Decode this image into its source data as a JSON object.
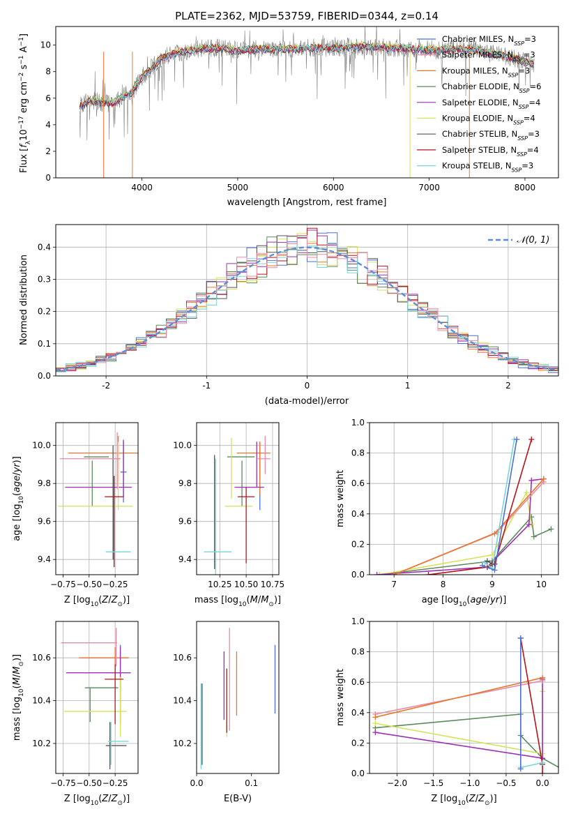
{
  "figure": {
    "title": "PLATE=2362, MJD=53759, FIBERID=0344, z=0.14"
  },
  "colors": {
    "model_palette": [
      "#4c6fd6",
      "#e8762d",
      "#5a8a5a",
      "#9c2fb3",
      "#d6e25a",
      "#555555",
      "#b5121b",
      "#78d6da",
      "#e88aa6",
      "#808080"
    ]
  },
  "chart_data": [
    {
      "type": "line",
      "id": "spectrum",
      "title": "PLATE=2362, MJD=53759, FIBERID=0344, z=0.14",
      "xlabel": "wavelength [Angstrom, rest frame]",
      "ylabel": "Flux [f_λ 10^-17 erg cm^-2 s^-1 A^-1]",
      "xlim": [
        3100,
        8350
      ],
      "ylim": [
        0,
        11.4
      ],
      "xticks": [
        4000,
        5000,
        6000,
        7000,
        8000
      ],
      "yticks": [
        0,
        2,
        4,
        6,
        8,
        10
      ],
      "grid": false,
      "legend_position": "top-right",
      "data_continuum": {
        "x": [
          3350,
          3450,
          3600,
          3700,
          3800,
          3900,
          4000,
          4100,
          4200,
          4300,
          4400,
          4600,
          4800,
          5000,
          5200,
          5500,
          5800,
          6000,
          6300,
          6600,
          6900,
          7100,
          7300,
          7500,
          7700,
          7900,
          8100
        ],
        "y": [
          5.4,
          5.8,
          5.7,
          5.6,
          6.1,
          6.5,
          7.6,
          8.3,
          9.0,
          9.3,
          9.5,
          9.7,
          9.8,
          9.6,
          9.7,
          9.7,
          9.8,
          9.8,
          9.9,
          9.8,
          9.7,
          9.6,
          9.7,
          9.6,
          9.3,
          9.0,
          8.5
        ]
      },
      "series": [
        {
          "name": "Chabrier MILES, N_SSP=3",
          "label_main": "Chabrier MILES, N",
          "label_sub": "SSP",
          "label_tail": "=3",
          "color": "#4c6fd6",
          "offset": 0.0
        },
        {
          "name": "Salpeter MILES, N_SSP=3",
          "label_main": "Salpeter MILES, N",
          "label_sub": "SSP",
          "label_tail": "=3",
          "color": "#e88aa6",
          "offset": 0.05
        },
        {
          "name": "Kroupa MILES, N_SSP=3",
          "label_main": "Kroupa MILES, N",
          "label_sub": "SSP",
          "label_tail": "=3",
          "color": "#e8762d",
          "offset": -0.05
        },
        {
          "name": "Chabrier ELODIE, N_SSP=6",
          "label_main": "Chabrier ELODIE, N",
          "label_sub": "SSP",
          "label_tail": "=6",
          "color": "#5a8a5a",
          "offset": 0.08
        },
        {
          "name": "Salpeter ELODIE, N_SSP=4",
          "label_main": "Salpeter ELODIE, N",
          "label_sub": "SSP",
          "label_tail": "=4",
          "color": "#9c2fb3",
          "offset": -0.08
        },
        {
          "name": "Kroupa ELODIE, N_SSP=4",
          "label_main": "Kroupa ELODIE, N",
          "label_sub": "SSP",
          "label_tail": "=4",
          "color": "#d6e25a",
          "offset": 0.12
        },
        {
          "name": "Chabrier STELIB, N_SSP=3",
          "label_main": "Chabrier STELIB, N",
          "label_sub": "SSP",
          "label_tail": "=3",
          "color": "#555555",
          "offset": -0.12
        },
        {
          "name": "Salpeter STELIB, N_SSP=4",
          "label_main": "Salpeter STELIB, N",
          "label_sub": "SSP",
          "label_tail": "=4",
          "color": "#b5121b",
          "offset": 0.03
        },
        {
          "name": "Kroupa STELIB, N_SSP=3",
          "label_main": "Kroupa STELIB, N",
          "label_sub": "SSP",
          "label_tail": "=3",
          "color": "#78d6da",
          "offset": 0.0
        }
      ]
    },
    {
      "type": "histogram",
      "id": "residuals",
      "xlabel": "(data-model)/error",
      "ylabel": "Normed distribution",
      "xlim": [
        -2.5,
        2.5
      ],
      "ylim": [
        0,
        0.47
      ],
      "xticks": [
        -2,
        -1,
        0,
        1,
        2
      ],
      "yticks": [
        0.0,
        0.1,
        0.2,
        0.3,
        0.4
      ],
      "grid": true,
      "legend_position": "top-right",
      "legend": "𝒩(0, 1)",
      "reference_curve": {
        "name": "N(0,1)",
        "mean": 0,
        "sigma": 1,
        "color": "#5b8ed6"
      },
      "bin_width": 0.1
    },
    {
      "type": "scatter",
      "id": "age-vs-z",
      "xlabel": "Z [log10(Z/Z_sun)]",
      "ylabel": "age [log10(age/yr)]",
      "xlim": [
        -0.82,
        -0.03
      ],
      "ylim": [
        9.32,
        10.12
      ],
      "xticks": [
        -0.75,
        -0.5,
        -0.25
      ],
      "xtick_labels": [
        "−0.75",
        "−0.50",
        "−0.25"
      ],
      "yticks": [
        9.4,
        9.6,
        9.8,
        10.0
      ],
      "grid": true,
      "errorbars": [
        {
          "x": -0.17,
          "xerr": 0.03,
          "y": 9.86,
          "yerr": 0.16,
          "color": "#4c6fd6"
        },
        {
          "x": -0.36,
          "xerr": 0.34,
          "y": 9.96,
          "yerr": 0.0,
          "color": "#e8762d"
        },
        {
          "x": -0.22,
          "xerr": 0.02,
          "y": 9.93,
          "yerr": 0.12,
          "color": "#e8762d"
        },
        {
          "x": -0.43,
          "xerr": 0.12,
          "y": 9.94,
          "yerr": 0.0,
          "color": "#5a8a5a"
        },
        {
          "x": -0.47,
          "xerr": 0.0,
          "y": 9.8,
          "yerr": 0.12,
          "color": "#5a8a5a"
        },
        {
          "x": -0.41,
          "xerr": 0.32,
          "y": 9.78,
          "yerr": 0.0,
          "color": "#9c2fb3"
        },
        {
          "x": -0.17,
          "xerr": 0.0,
          "y": 9.88,
          "yerr": 0.15,
          "color": "#9c2fb3"
        },
        {
          "x": -0.44,
          "xerr": 0.36,
          "y": 9.68,
          "yerr": 0.0,
          "color": "#d6e25a"
        },
        {
          "x": -0.22,
          "xerr": 0.0,
          "y": 9.84,
          "yerr": 0.18,
          "color": "#d6e25a"
        },
        {
          "x": -0.27,
          "xerr": 0.0,
          "y": 9.7,
          "yerr": 0.3,
          "color": "#555555"
        },
        {
          "x": -0.26,
          "xerr": 0.09,
          "y": 9.73,
          "yerr": 0.0,
          "color": "#b5121b"
        },
        {
          "x": -0.26,
          "xerr": 0.0,
          "y": 9.6,
          "yerr": 0.24,
          "color": "#b5121b"
        },
        {
          "x": -0.22,
          "xerr": 0.12,
          "y": 9.44,
          "yerr": 0.0,
          "color": "#78d6da"
        },
        {
          "x": -0.49,
          "xerr": 0.29,
          "y": 9.93,
          "yerr": 0.0,
          "color": "#e88aa6"
        },
        {
          "x": -0.23,
          "xerr": 0.0,
          "y": 9.92,
          "yerr": 0.15,
          "color": "#e88aa6"
        }
      ]
    },
    {
      "type": "scatter",
      "id": "age-vs-mass",
      "xlabel": "mass [log10(M/M_sun)]",
      "ylabel": "",
      "xlim": [
        10.03,
        10.81
      ],
      "ylim": [
        9.32,
        10.12
      ],
      "xticks": [
        10.25,
        10.5,
        10.75
      ],
      "xtick_labels": [
        "10.25",
        "10.50",
        "10.75"
      ],
      "yticks": [
        9.4,
        9.6,
        9.8,
        10.0
      ],
      "grid": true,
      "errorbars": [
        {
          "x": 10.63,
          "xerr": 0.0,
          "y": 9.84,
          "yerr": 0.18,
          "color": "#4c6fd6"
        },
        {
          "x": 10.57,
          "xerr": 0.16,
          "y": 9.96,
          "yerr": 0.0,
          "color": "#e8762d"
        },
        {
          "x": 10.63,
          "xerr": 0.0,
          "y": 9.88,
          "yerr": 0.14,
          "color": "#e8762d"
        },
        {
          "x": 10.45,
          "xerr": 0.13,
          "y": 9.94,
          "yerr": 0.0,
          "color": "#5a8a5a"
        },
        {
          "x": 10.46,
          "xerr": 0.0,
          "y": 9.8,
          "yerr": 0.12,
          "color": "#5a8a5a"
        },
        {
          "x": 10.53,
          "xerr": 0.14,
          "y": 9.78,
          "yerr": 0.0,
          "color": "#9c2fb3"
        },
        {
          "x": 10.6,
          "xerr": 0.0,
          "y": 9.9,
          "yerr": 0.12,
          "color": "#9c2fb3"
        },
        {
          "x": 10.43,
          "xerr": 0.13,
          "y": 9.68,
          "yerr": 0.0,
          "color": "#d6e25a"
        },
        {
          "x": 10.36,
          "xerr": 0.0,
          "y": 9.88,
          "yerr": 0.16,
          "color": "#d6e25a"
        },
        {
          "x": 10.2,
          "xerr": 0.0,
          "y": 9.65,
          "yerr": 0.3,
          "color": "#555555"
        },
        {
          "x": 10.5,
          "xerr": 0.08,
          "y": 9.73,
          "yerr": 0.0,
          "color": "#b5121b"
        },
        {
          "x": 10.5,
          "xerr": 0.0,
          "y": 9.58,
          "yerr": 0.2,
          "color": "#b5121b"
        },
        {
          "x": 10.23,
          "xerr": 0.13,
          "y": 9.44,
          "yerr": 0.0,
          "color": "#78d6da"
        },
        {
          "x": 10.21,
          "xerr": 0.0,
          "y": 9.6,
          "yerr": 0.33,
          "color": "#78d6da"
        },
        {
          "x": 10.67,
          "xerr": 0.06,
          "y": 9.93,
          "yerr": 0.0,
          "color": "#e88aa6"
        },
        {
          "x": 10.68,
          "xerr": 0.0,
          "y": 9.95,
          "yerr": 0.1,
          "color": "#e88aa6"
        }
      ]
    },
    {
      "type": "line",
      "id": "massweight-vs-age",
      "xlabel": "age [log10(age/yr)]",
      "ylabel": "mass weight",
      "xlim": [
        6.5,
        10.35
      ],
      "ylim": [
        0,
        1.0
      ],
      "xticks": [
        7,
        8,
        9,
        10
      ],
      "yticks": [
        0.0,
        0.2,
        0.4,
        0.6,
        0.8,
        1.0
      ],
      "grid": true,
      "series": [
        {
          "color": "#5a8a5a",
          "x": [
            6.7,
            9.0,
            9.8,
            9.85,
            10.2
          ],
          "y": [
            0.0,
            0.09,
            0.38,
            0.25,
            0.3
          ]
        },
        {
          "color": "#d6e25a",
          "x": [
            6.7,
            9.0,
            9.7,
            9.8
          ],
          "y": [
            0.0,
            0.13,
            0.54,
            0.33
          ]
        },
        {
          "color": "#9c2fb3",
          "x": [
            6.65,
            8.9,
            9.75,
            9.8,
            10.05
          ],
          "y": [
            0.0,
            0.05,
            0.33,
            0.62,
            0.63
          ]
        },
        {
          "color": "#e88aa6",
          "x": [
            7.0,
            9.1,
            10.05
          ],
          "y": [
            0.0,
            0.28,
            0.61
          ]
        },
        {
          "color": "#e8762d",
          "x": [
            7.0,
            9.05,
            10.05
          ],
          "y": [
            0.0,
            0.27,
            0.63
          ]
        },
        {
          "color": "#b5121b",
          "x": [
            7.7,
            8.9,
            9.05,
            9.8
          ],
          "y": [
            0.0,
            0.05,
            0.07,
            0.89
          ]
        },
        {
          "color": "#78d6da",
          "x": [
            8.85,
            9.0,
            9.45
          ],
          "y": [
            0.08,
            0.04,
            0.89
          ]
        },
        {
          "color": "#4c6fd6",
          "x": [
            8.8,
            9.05,
            9.5
          ],
          "y": [
            0.06,
            0.03,
            0.89
          ]
        },
        {
          "color": "#555555",
          "x": [
            8.9,
            9.0
          ],
          "y": [
            0.09,
            0.07
          ]
        }
      ]
    },
    {
      "type": "scatter",
      "id": "mass-vs-z",
      "xlabel": "Z [log10(Z/Z_sun)]",
      "ylabel": "mass [log10(M/M_sun)]",
      "xlim": [
        -0.82,
        -0.03
      ],
      "ylim": [
        10.06,
        10.77
      ],
      "xticks": [
        -0.75,
        -0.5,
        -0.25
      ],
      "xtick_labels": [
        "−0.75",
        "−0.50",
        "−0.25"
      ],
      "yticks": [
        10.2,
        10.4,
        10.6
      ],
      "grid": true,
      "errorbars": [
        {
          "x": -0.35,
          "xerr": 0.23,
          "y": 10.6,
          "yerr": 0.0,
          "color": "#4c6fd6"
        },
        {
          "x": -0.2,
          "xerr": 0.0,
          "y": 10.55,
          "yerr": 0.11,
          "color": "#4c6fd6"
        },
        {
          "x": -0.36,
          "xerr": 0.24,
          "y": 10.6,
          "yerr": 0.0,
          "color": "#e8762d"
        },
        {
          "x": -0.25,
          "xerr": 0.0,
          "y": 10.58,
          "yerr": 0.07,
          "color": "#e8762d"
        },
        {
          "x": -0.38,
          "xerr": 0.16,
          "y": 10.46,
          "yerr": 0.0,
          "color": "#5a8a5a"
        },
        {
          "x": -0.49,
          "xerr": 0.0,
          "y": 10.38,
          "yerr": 0.08,
          "color": "#5a8a5a"
        },
        {
          "x": -0.41,
          "xerr": 0.31,
          "y": 10.53,
          "yerr": 0.0,
          "color": "#9c2fb3"
        },
        {
          "x": -0.2,
          "xerr": 0.0,
          "y": 10.47,
          "yerr": 0.18,
          "color": "#9c2fb3"
        },
        {
          "x": -0.44,
          "xerr": 0.3,
          "y": 10.35,
          "yerr": 0.0,
          "color": "#d6e25a"
        },
        {
          "x": -0.2,
          "xerr": 0.0,
          "y": 10.37,
          "yerr": 0.14,
          "color": "#d6e25a"
        },
        {
          "x": -0.24,
          "xerr": 0.1,
          "y": 10.19,
          "yerr": 0.0,
          "color": "#555555"
        },
        {
          "x": -0.3,
          "xerr": 0.0,
          "y": 10.19,
          "yerr": 0.11,
          "color": "#555555"
        },
        {
          "x": -0.26,
          "xerr": 0.09,
          "y": 10.5,
          "yerr": 0.0,
          "color": "#b5121b"
        },
        {
          "x": -0.25,
          "xerr": 0.0,
          "y": 10.43,
          "yerr": 0.14,
          "color": "#b5121b"
        },
        {
          "x": -0.22,
          "xerr": 0.1,
          "y": 10.21,
          "yerr": 0.0,
          "color": "#78d6da"
        },
        {
          "x": -0.29,
          "xerr": 0.0,
          "y": 10.2,
          "yerr": 0.1,
          "color": "#78d6da"
        },
        {
          "x": -0.5,
          "xerr": 0.27,
          "y": 10.67,
          "yerr": 0.0,
          "color": "#e88aa6"
        },
        {
          "x": -0.24,
          "xerr": 0.0,
          "y": 10.65,
          "yerr": 0.09,
          "color": "#e88aa6"
        }
      ]
    },
    {
      "type": "scatter",
      "id": "mass-vs-ebv",
      "xlabel": "E(B-V)",
      "ylabel": "",
      "xlim": [
        0.0,
        0.15
      ],
      "ylim": [
        10.06,
        10.77
      ],
      "xticks": [
        0.0,
        0.1
      ],
      "xtick_labels": [
        "0.0",
        "0.1"
      ],
      "yticks": [
        10.2,
        10.4,
        10.6
      ],
      "grid": false,
      "errorbars": [
        {
          "x": 0.143,
          "xerr": 0.0,
          "y": 10.5,
          "yerr": 0.16,
          "color": "#4c6fd6"
        },
        {
          "x": 0.073,
          "xerr": 0.0,
          "y": 10.48,
          "yerr": 0.15,
          "color": "#e8762d"
        },
        {
          "x": 0.06,
          "xerr": 0.0,
          "y": 10.5,
          "yerr": 0.24,
          "color": "#e88aa6"
        },
        {
          "x": 0.05,
          "xerr": 0.0,
          "y": 10.47,
          "yerr": 0.16,
          "color": "#9c2fb3"
        },
        {
          "x": 0.055,
          "xerr": 0.0,
          "y": 10.39,
          "yerr": 0.16,
          "color": "#d6e25a"
        },
        {
          "x": 0.055,
          "xerr": 0.0,
          "y": 10.4,
          "yerr": 0.15,
          "color": "#b5121b"
        },
        {
          "x": 0.01,
          "xerr": 0.0,
          "y": 10.29,
          "yerr": 0.19,
          "color": "#555555"
        },
        {
          "x": 0.008,
          "xerr": 0.0,
          "y": 10.28,
          "yerr": 0.2,
          "color": "#78d6da"
        }
      ]
    },
    {
      "type": "line",
      "id": "massweight-vs-z",
      "xlabel": "Z [log10(Z/Z_sun)]",
      "ylabel": "mass weight",
      "xlim": [
        -2.38,
        0.22
      ],
      "ylim": [
        0,
        1.0
      ],
      "xticks": [
        -2.0,
        -1.5,
        -1.0,
        -0.5,
        0.0
      ],
      "xtick_labels": [
        "−2.0",
        "−1.5",
        "−1.0",
        "−0.5",
        "0.0"
      ],
      "yticks": [
        0.0,
        0.2,
        0.4,
        0.6,
        0.8,
        1.0
      ],
      "grid": true,
      "series": [
        {
          "color": "#5a8a5a",
          "x": [
            -2.3,
            -0.3,
            -0.3,
            0.0,
            0.3
          ],
          "y": [
            0.3,
            0.39,
            0.25,
            0.1,
            0.02
          ]
        },
        {
          "color": "#d6e25a",
          "x": [
            -2.3,
            0.0,
            0.0
          ],
          "y": [
            0.33,
            0.13,
            0.54
          ]
        },
        {
          "color": "#9c2fb3",
          "x": [
            -2.3,
            0.0,
            0.0
          ],
          "y": [
            0.27,
            0.1,
            0.62
          ]
        },
        {
          "color": "#e88aa6",
          "x": [
            -2.3,
            0.0
          ],
          "y": [
            0.39,
            0.61
          ]
        },
        {
          "color": "#e8762d",
          "x": [
            -2.3,
            0.0
          ],
          "y": [
            0.37,
            0.63
          ]
        },
        {
          "color": "#b5121b",
          "x": [
            -0.3,
            0.0,
            0.0
          ],
          "y": [
            0.89,
            0.06,
            0.0
          ]
        },
        {
          "color": "#78d6da",
          "x": [
            -0.3,
            -0.3,
            0.0
          ],
          "y": [
            0.89,
            0.04,
            0.07
          ]
        },
        {
          "color": "#4c6fd6",
          "x": [
            -0.3,
            -0.3
          ],
          "y": [
            0.89,
            0.03
          ]
        }
      ]
    }
  ]
}
